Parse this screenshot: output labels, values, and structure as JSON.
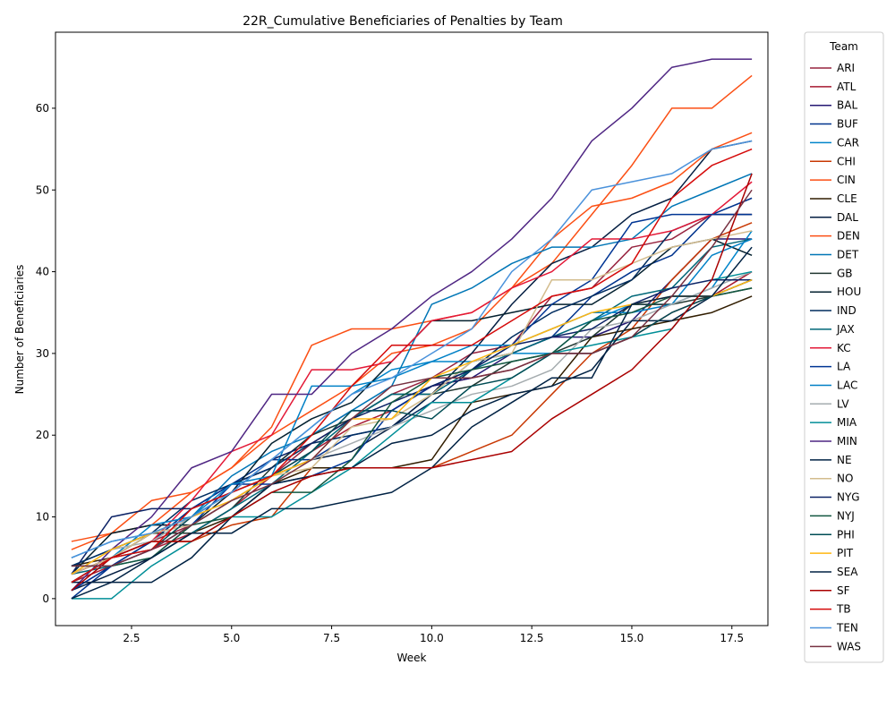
{
  "chart_data": {
    "type": "line",
    "title": "22R_Cumulative Beneficiaries of Penalties by Team",
    "xlabel": "Week",
    "ylabel": "Number of Beneficiaries",
    "xlim": [
      0.6,
      18.4
    ],
    "ylim": [
      -3.3,
      69.3
    ],
    "xticks": [
      2.5,
      5.0,
      7.5,
      10.0,
      12.5,
      15.0,
      17.5
    ],
    "xtick_labels": [
      "2.5",
      "5.0",
      "7.5",
      "10.0",
      "12.5",
      "15.0",
      "17.5"
    ],
    "yticks": [
      0,
      10,
      20,
      30,
      40,
      50,
      60
    ],
    "ytick_labels": [
      "0",
      "10",
      "20",
      "30",
      "40",
      "50",
      "60"
    ],
    "grid": false,
    "legend_title": "Team",
    "legend_position": "outside-right",
    "x": [
      1,
      2,
      3,
      4,
      5,
      6,
      7,
      8,
      9,
      10,
      11,
      12,
      13,
      14,
      15,
      16,
      17,
      18
    ],
    "series": [
      {
        "name": "ARI",
        "color": "#97233F",
        "values": [
          3,
          5,
          7,
          9,
          12,
          15,
          19,
          22,
          25,
          27,
          30,
          31,
          37,
          38,
          43,
          44,
          47,
          47
        ]
      },
      {
        "name": "ATL",
        "color": "#A71930",
        "values": [
          2,
          4,
          6,
          8,
          11,
          15,
          18,
          21,
          23,
          26,
          27,
          28,
          30,
          30,
          32,
          35,
          37,
          40
        ]
      },
      {
        "name": "BAL",
        "color": "#241773",
        "values": [
          1,
          4,
          7,
          11,
          14,
          16,
          20,
          23,
          23,
          26,
          27,
          30,
          32,
          32,
          34,
          39,
          44,
          44
        ]
      },
      {
        "name": "BUF",
        "color": "#00338D",
        "values": [
          0,
          4,
          7,
          11,
          14,
          17,
          17,
          20,
          21,
          25,
          29,
          30,
          32,
          37,
          40,
          42,
          47,
          49
        ]
      },
      {
        "name": "CAR",
        "color": "#0085CA",
        "values": [
          5,
          7,
          8,
          10,
          13,
          17,
          21,
          25,
          28,
          29,
          29,
          30,
          30,
          34,
          36,
          36,
          38,
          45
        ]
      },
      {
        "name": "CHI",
        "color": "#C83803",
        "values": [
          2,
          5,
          7,
          7,
          9,
          10,
          16,
          16,
          16,
          16,
          18,
          20,
          25,
          30,
          33,
          39,
          44,
          46
        ]
      },
      {
        "name": "CIN",
        "color": "#FB4F14",
        "values": [
          6,
          8,
          9,
          13,
          16,
          21,
          31,
          33,
          33,
          34,
          35,
          38,
          41,
          47,
          53,
          60,
          60,
          64
        ]
      },
      {
        "name": "CLE",
        "color": "#311D00",
        "values": [
          4,
          5,
          8,
          8,
          10,
          14,
          16,
          16,
          16,
          17,
          24,
          25,
          26,
          32,
          33,
          34,
          35,
          37
        ]
      },
      {
        "name": "DAL",
        "color": "#041E42",
        "values": [
          1,
          3,
          5,
          9,
          12,
          15,
          17,
          18,
          21,
          25,
          30,
          36,
          41,
          43,
          47,
          49,
          55,
          56
        ]
      },
      {
        "name": "DEN",
        "color": "#FB4F14",
        "values": [
          7,
          8,
          12,
          13,
          16,
          20,
          23,
          26,
          30,
          31,
          33,
          38,
          44,
          48,
          49,
          51,
          55,
          57
        ]
      },
      {
        "name": "DET",
        "color": "#0076B6",
        "values": [
          4,
          6,
          8,
          10,
          15,
          18,
          20,
          23,
          26,
          36,
          38,
          41,
          43,
          43,
          44,
          48,
          50,
          52
        ]
      },
      {
        "name": "GB",
        "color": "#203731",
        "values": [
          3,
          5,
          8,
          8,
          11,
          16,
          20,
          22,
          25,
          25,
          26,
          29,
          30,
          32,
          36,
          36,
          37,
          38
        ]
      },
      {
        "name": "HOU",
        "color": "#03202F",
        "values": [
          3,
          8,
          9,
          9,
          13,
          19,
          22,
          24,
          29,
          34,
          34,
          35,
          36,
          36,
          39,
          43,
          44,
          42
        ]
      },
      {
        "name": "IND",
        "color": "#002C5F",
        "values": [
          4,
          6,
          8,
          12,
          14,
          16,
          19,
          20,
          21,
          24,
          28,
          32,
          35,
          37,
          39,
          45,
          47,
          47
        ]
      },
      {
        "name": "JAX",
        "color": "#006778",
        "values": [
          3,
          4,
          5,
          8,
          11,
          14,
          18,
          22,
          25,
          25,
          28,
          30,
          32,
          34,
          37,
          38,
          43,
          44
        ]
      },
      {
        "name": "KC",
        "color": "#E31837",
        "values": [
          3,
          5,
          7,
          12,
          18,
          20,
          28,
          28,
          29,
          34,
          35,
          38,
          40,
          44,
          44,
          45,
          47,
          51
        ]
      },
      {
        "name": "LA",
        "color": "#003594",
        "values": [
          1,
          4,
          6,
          9,
          14,
          14,
          15,
          17,
          23,
          26,
          28,
          31,
          36,
          39,
          46,
          47,
          47,
          47
        ]
      },
      {
        "name": "LAC",
        "color": "#0080C6",
        "values": [
          2,
          5,
          9,
          10,
          14,
          15,
          26,
          26,
          27,
          29,
          31,
          31,
          33,
          35,
          35,
          36,
          42,
          44
        ]
      },
      {
        "name": "LV",
        "color": "#A5ACAF",
        "values": [
          3,
          6,
          7,
          10,
          12,
          15,
          17,
          19,
          21,
          23,
          25,
          26,
          28,
          33,
          34,
          36,
          38,
          40
        ]
      },
      {
        "name": "MIA",
        "color": "#008E97",
        "values": [
          0,
          0,
          4,
          7,
          10,
          10,
          13,
          16,
          20,
          24,
          24,
          27,
          30,
          31,
          32,
          33,
          39,
          40
        ]
      },
      {
        "name": "MIN",
        "color": "#4F2683",
        "values": [
          1,
          6,
          10,
          16,
          18,
          25,
          25,
          30,
          33,
          37,
          40,
          44,
          49,
          56,
          60,
          65,
          66,
          66
        ]
      },
      {
        "name": "NE",
        "color": "#002244",
        "values": [
          2,
          2,
          2,
          5,
          10,
          14,
          15,
          16,
          19,
          20,
          23,
          25,
          26,
          28,
          34,
          34,
          37,
          39
        ]
      },
      {
        "name": "NO",
        "color": "#D3BC8D",
        "values": [
          3,
          5,
          8,
          9,
          12,
          15,
          16,
          21,
          22,
          25,
          29,
          30,
          39,
          39,
          41,
          43,
          44,
          45
        ]
      },
      {
        "name": "NYG",
        "color": "#0B2265",
        "values": [
          3,
          10,
          11,
          11,
          13,
          17,
          19,
          22,
          24,
          26,
          28,
          31,
          32,
          33,
          36,
          38,
          39,
          39
        ]
      },
      {
        "name": "NYJ",
        "color": "#125740",
        "values": [
          4,
          4,
          5,
          9,
          10,
          13,
          13,
          17,
          24,
          27,
          28,
          29,
          30,
          34,
          35,
          37,
          37,
          38
        ]
      },
      {
        "name": "PHI",
        "color": "#004C54",
        "values": [
          2,
          5,
          6,
          10,
          13,
          15,
          18,
          23,
          23,
          22,
          26,
          27,
          30,
          30,
          32,
          35,
          37,
          39
        ]
      },
      {
        "name": "PIT",
        "color": "#FFB612",
        "values": [
          3,
          6,
          8,
          10,
          12,
          15,
          17,
          22,
          22,
          27,
          29,
          31,
          33,
          35,
          36,
          37,
          37,
          39
        ]
      },
      {
        "name": "SEA",
        "color": "#002244",
        "values": [
          0,
          2,
          5,
          8,
          8,
          11,
          11,
          12,
          13,
          16,
          21,
          24,
          27,
          27,
          36,
          37,
          37,
          43
        ]
      },
      {
        "name": "SF",
        "color": "#AA0000",
        "values": [
          1,
          5,
          7,
          7,
          10,
          13,
          15,
          16,
          16,
          16,
          17,
          18,
          22,
          25,
          28,
          33,
          39,
          52
        ]
      },
      {
        "name": "TB",
        "color": "#D50A0A",
        "values": [
          2,
          5,
          6,
          11,
          13,
          15,
          20,
          26,
          31,
          31,
          31,
          34,
          37,
          38,
          41,
          49,
          53,
          55
        ]
      },
      {
        "name": "TEN",
        "color": "#4B92DB",
        "values": [
          5,
          7,
          8,
          10,
          13,
          17,
          21,
          25,
          27,
          30,
          33,
          40,
          44,
          50,
          51,
          52,
          55,
          56
        ]
      },
      {
        "name": "WAS",
        "color": "#773141",
        "values": [
          4,
          4,
          6,
          9,
          12,
          14,
          17,
          22,
          26,
          27,
          27,
          28,
          30,
          30,
          32,
          37,
          43,
          50
        ]
      }
    ]
  }
}
